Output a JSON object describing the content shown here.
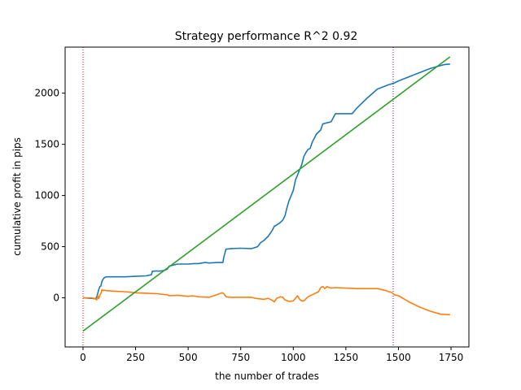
{
  "chart_data": {
    "type": "line",
    "title": "Strategy performance R^2 0.92",
    "xlabel": "the number of trades",
    "ylabel": "cumulative profit in pips",
    "xlim": [
      -85,
      1835
    ],
    "ylim": [
      -480,
      2450
    ],
    "x_ticks": [
      0,
      250,
      500,
      750,
      1000,
      1250,
      1500,
      1750
    ],
    "y_ticks": [
      0,
      500,
      1000,
      1500,
      2000
    ],
    "grid": false,
    "legend": "none",
    "series": [
      {
        "color": "#1f77b4",
        "x": [
          0,
          40,
          60,
          65,
          70,
          75,
          80,
          85,
          90,
          95,
          100,
          110,
          125,
          150,
          200,
          250,
          300,
          325,
          330,
          345,
          370,
          390,
          400,
          410,
          430,
          450,
          500,
          530,
          550,
          580,
          600,
          640,
          660,
          665,
          670,
          680,
          700,
          750,
          800,
          830,
          845,
          860,
          880,
          900,
          910,
          920,
          935,
          950,
          960,
          970,
          980,
          990,
          1000,
          1010,
          1020,
          1030,
          1040,
          1050,
          1060,
          1070,
          1080,
          1090,
          1100,
          1110,
          1120,
          1130,
          1140,
          1160,
          1180,
          1200,
          1250,
          1280,
          1300,
          1350,
          1400,
          1450,
          1480,
          1500,
          1550,
          1600,
          1650,
          1700,
          1720,
          1745
        ],
        "y": [
          0,
          -5,
          -10,
          10,
          40,
          80,
          110,
          115,
          160,
          180,
          195,
          205,
          205,
          205,
          205,
          210,
          215,
          225,
          260,
          262,
          262,
          270,
          280,
          310,
          320,
          330,
          330,
          335,
          335,
          345,
          340,
          345,
          345,
          345,
          400,
          475,
          480,
          485,
          480,
          500,
          540,
          560,
          600,
          660,
          700,
          710,
          730,
          760,
          800,
          880,
          950,
          1000,
          1050,
          1150,
          1200,
          1250,
          1300,
          1380,
          1420,
          1450,
          1460,
          1520,
          1560,
          1600,
          1620,
          1640,
          1700,
          1710,
          1720,
          1800,
          1800,
          1800,
          1850,
          1950,
          2040,
          2080,
          2100,
          2120,
          2160,
          2200,
          2240,
          2270,
          2280,
          2285
        ]
      },
      {
        "color": "#ff7f0e",
        "x": [
          0,
          40,
          60,
          65,
          70,
          75,
          80,
          85,
          90,
          95,
          100,
          110,
          150,
          200,
          250,
          300,
          350,
          400,
          410,
          450,
          500,
          520,
          550,
          600,
          650,
          660,
          670,
          680,
          700,
          750,
          800,
          820,
          840,
          860,
          880,
          900,
          910,
          920,
          940,
          950,
          960,
          980,
          1000,
          1020,
          1030,
          1040,
          1050,
          1070,
          1090,
          1100,
          1120,
          1130,
          1140,
          1150,
          1160,
          1180,
          1200,
          1250,
          1300,
          1350,
          1400,
          1440,
          1470,
          1480,
          1500,
          1550,
          1600,
          1650,
          1700,
          1745
        ],
        "y": [
          0,
          0,
          -10,
          -20,
          20,
          -10,
          30,
          40,
          80,
          70,
          75,
          70,
          65,
          60,
          50,
          45,
          40,
          30,
          20,
          25,
          15,
          20,
          10,
          5,
          40,
          50,
          40,
          10,
          5,
          5,
          5,
          -5,
          -10,
          -15,
          -5,
          -25,
          -40,
          -5,
          10,
          5,
          -20,
          -35,
          -30,
          20,
          -15,
          -30,
          -30,
          10,
          30,
          40,
          60,
          100,
          110,
          90,
          110,
          95,
          100,
          95,
          90,
          90,
          90,
          70,
          50,
          30,
          20,
          -40,
          -90,
          -130,
          -160,
          -165
        ]
      },
      {
        "color": "#2ca02c",
        "x": [
          0,
          1745
        ],
        "y": [
          -325,
          2355
        ]
      }
    ],
    "vlines": [
      {
        "x": 0,
        "color": "#ff0000",
        "style": "dotted"
      },
      {
        "x": 1475,
        "color": "#800080",
        "style": "dotted"
      }
    ]
  }
}
